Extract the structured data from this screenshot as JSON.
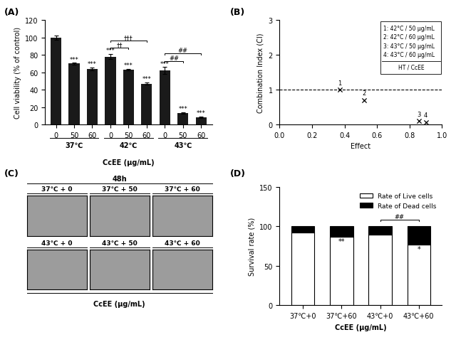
{
  "chart_data": [
    {
      "type": "bar",
      "title": "(A)",
      "categories": [
        "0",
        "50",
        "60",
        "0",
        "50",
        "60",
        "0",
        "50",
        "60"
      ],
      "groups": [
        "37℃",
        "37℃",
        "37℃",
        "42℃",
        "42℃",
        "42℃",
        "43℃",
        "43℃",
        "43℃"
      ],
      "values": [
        100,
        70,
        64,
        78,
        63,
        47,
        62,
        13,
        8
      ],
      "errors": [
        2.5,
        1,
        1.5,
        3,
        1,
        1.5,
        4,
        1,
        1
      ],
      "significance": [
        null,
        "***",
        "***",
        "***",
        "***",
        "***",
        "***",
        "***",
        "***"
      ],
      "brackets": [
        {
          "from": 3,
          "to": 4,
          "text": "††"
        },
        {
          "from": 3,
          "to": 5,
          "text": "†††"
        },
        {
          "from": 6,
          "to": 7,
          "text": "##"
        },
        {
          "from": 6,
          "to": 8,
          "text": "##"
        }
      ],
      "color": "#1a1a1a",
      "ylabel": "Cell viability (% of control)",
      "xlabel": "CcEE (μg/mL)",
      "ylim": [
        0,
        120
      ],
      "yticks": [
        0,
        20,
        40,
        60,
        80,
        100,
        120
      ]
    },
    {
      "type": "scatter",
      "title": "(B)",
      "x": [
        0.37,
        0.52,
        0.86,
        0.9
      ],
      "values": [
        1.0,
        0.7,
        0.1,
        0.07
      ],
      "point_labels": [
        "1",
        "2",
        "3",
        "4"
      ],
      "marker": "x",
      "color": "#000000",
      "reference_line": 1,
      "line_style": "dashed",
      "key": [
        "1: 42°C / 50 μg/mL",
        "2: 42°C / 60 μg/mL",
        "3: 43°C / 50 μg/mL",
        "4: 43°C / 60 μg/mL"
      ],
      "key_footer": "HT / CcEE",
      "xlabel": "Effect",
      "ylabel": "Combination Index (CI)",
      "xlim": [
        0.0,
        1.0
      ],
      "xticks": [
        0.0,
        0.2,
        0.4,
        0.6,
        0.8,
        1.0
      ],
      "ylim": [
        0,
        3
      ],
      "yticks": [
        0,
        1,
        2,
        3
      ]
    },
    {
      "type": "image_grid",
      "title": "(C)",
      "header": "48h",
      "rows": [
        [
          "37℃ + 0",
          "37℃ + 50",
          "37℃ + 60"
        ],
        [
          "43℃ + 0",
          "43℃ + 50",
          "43℃ + 60"
        ]
      ],
      "xlabel": "CcEE (μg/mL)"
    },
    {
      "type": "bar",
      "stacked": true,
      "title": "(D)",
      "categories": [
        "37℃+0",
        "37℃+60",
        "43℃+0",
        "43℃+60"
      ],
      "series": [
        {
          "name": "Rate of Live cells",
          "color": "#ffffff",
          "values": [
            92,
            87,
            90,
            77
          ]
        },
        {
          "name": "Rate of Dead cells",
          "color": "#000000",
          "values": [
            8,
            13,
            10,
            23
          ]
        }
      ],
      "significance": [
        null,
        "**",
        null,
        "*"
      ],
      "brackets": [
        {
          "from": 2,
          "to": 3,
          "text": "##"
        }
      ],
      "legend": "upper right",
      "ylabel": "Survival rate (%)",
      "xlabel": "CcEE (μg/mL)",
      "ylim": [
        0,
        150
      ],
      "yticks": [
        0,
        50,
        100,
        150
      ]
    }
  ]
}
